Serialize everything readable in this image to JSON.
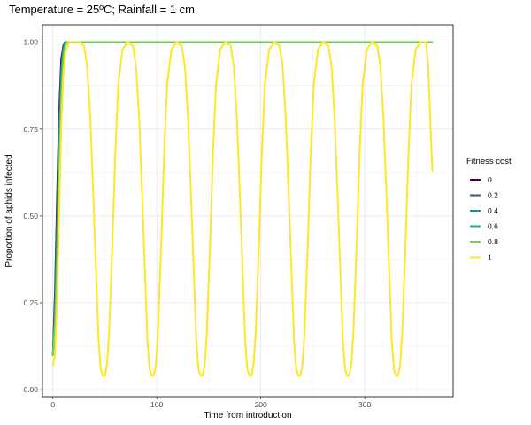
{
  "chart_data": {
    "type": "line",
    "title": "Temperature = 25ºC; Rainfall = 1 cm",
    "xlabel": "Time from introduction",
    "ylabel": "Proportion of aphids infected",
    "xlim": [
      -10,
      385
    ],
    "ylim": [
      -0.02,
      1.05
    ],
    "x_ticks": [
      0,
      100,
      200,
      300
    ],
    "x_tick_labels": [
      "0",
      "100",
      "200",
      "300"
    ],
    "y_ticks": [
      0,
      0.25,
      0.5,
      0.75,
      1
    ],
    "y_tick_labels": [
      "0.00",
      "0.25",
      "0.50",
      "0.75",
      "1.00"
    ],
    "grid": true,
    "legend": {
      "title": "Fitness cost",
      "position": "right"
    },
    "series": [
      {
        "name": "0",
        "color": "#440154",
        "x": [
          0,
          2,
          4,
          6,
          8,
          10,
          12,
          20,
          50,
          100,
          150,
          200,
          250,
          300,
          365
        ],
        "y": [
          0.1,
          0.28,
          0.55,
          0.8,
          0.95,
          0.99,
          1.0,
          1.0,
          1.0,
          1.0,
          1.0,
          1.0,
          1.0,
          1.0,
          1.0
        ]
      },
      {
        "name": "0.2",
        "color": "#3b528b",
        "x": [
          0,
          2,
          4,
          6,
          8,
          10,
          12,
          20,
          50,
          100,
          150,
          200,
          250,
          300,
          365
        ],
        "y": [
          0.1,
          0.25,
          0.5,
          0.76,
          0.93,
          0.99,
          1.0,
          1.0,
          1.0,
          1.0,
          1.0,
          1.0,
          1.0,
          1.0,
          1.0
        ]
      },
      {
        "name": "0.4",
        "color": "#21908d",
        "x": [
          0,
          2,
          4,
          6,
          8,
          10,
          12,
          14,
          20,
          50,
          100,
          150,
          200,
          250,
          300,
          365
        ],
        "y": [
          0.1,
          0.22,
          0.45,
          0.7,
          0.9,
          0.98,
          1.0,
          1.0,
          1.0,
          1.0,
          1.0,
          1.0,
          1.0,
          1.0,
          1.0,
          1.0
        ]
      },
      {
        "name": "0.6",
        "color": "#27ad81",
        "x": [
          0,
          2,
          4,
          6,
          8,
          10,
          12,
          14,
          20,
          50,
          100,
          150,
          200,
          250,
          300,
          365
        ],
        "y": [
          0.1,
          0.2,
          0.4,
          0.65,
          0.87,
          0.97,
          0.995,
          1.0,
          1.0,
          1.0,
          1.0,
          1.0,
          1.0,
          1.0,
          1.0,
          1.0
        ]
      },
      {
        "name": "0.8",
        "color": "#7ad151",
        "x": [
          0,
          2,
          4,
          6,
          8,
          10,
          12,
          14,
          16,
          20,
          50,
          100,
          150,
          200,
          250,
          300,
          365
        ],
        "y": [
          0.1,
          0.18,
          0.35,
          0.6,
          0.83,
          0.95,
          0.99,
          1.0,
          1.0,
          1.0,
          1.0,
          1.0,
          1.0,
          1.0,
          1.0,
          1.0,
          1.0
        ]
      },
      {
        "name": "1",
        "color": "#fde725",
        "x": [
          0,
          2,
          4,
          6,
          8,
          10,
          12,
          16,
          20,
          25,
          30,
          33,
          36,
          39,
          42,
          44,
          46,
          48,
          50,
          52,
          54,
          57,
          60,
          63,
          67,
          72,
          77,
          80,
          83,
          86,
          89,
          91,
          93,
          95,
          97,
          99,
          101,
          104,
          107,
          110,
          114,
          119,
          124,
          127,
          130,
          133,
          136,
          138,
          140,
          142,
          144,
          146,
          148,
          151,
          154,
          157,
          161,
          166,
          171,
          174,
          177,
          180,
          183,
          185,
          187,
          189,
          191,
          193,
          195,
          198,
          201,
          204,
          208,
          213,
          218,
          221,
          224,
          227,
          230,
          232,
          234,
          236,
          238,
          240,
          242,
          245,
          248,
          251,
          255,
          260,
          265,
          268,
          271,
          274,
          277,
          279,
          281,
          283,
          285,
          287,
          289,
          292,
          295,
          298,
          302,
          307,
          312,
          315,
          318,
          321,
          324,
          326,
          328,
          330,
          332,
          334,
          336,
          339,
          342,
          345,
          349,
          354,
          359,
          361,
          363,
          365
        ],
        "y": [
          0.07,
          0.1,
          0.25,
          0.5,
          0.75,
          0.9,
          0.97,
          1.0,
          1.0,
          1.0,
          0.99,
          0.93,
          0.78,
          0.55,
          0.3,
          0.14,
          0.06,
          0.04,
          0.04,
          0.07,
          0.16,
          0.4,
          0.68,
          0.88,
          0.98,
          1.0,
          0.99,
          0.93,
          0.78,
          0.55,
          0.3,
          0.14,
          0.06,
          0.04,
          0.04,
          0.07,
          0.16,
          0.4,
          0.68,
          0.88,
          0.98,
          1.0,
          0.99,
          0.93,
          0.78,
          0.55,
          0.3,
          0.14,
          0.06,
          0.04,
          0.04,
          0.07,
          0.16,
          0.4,
          0.68,
          0.88,
          0.98,
          1.0,
          0.99,
          0.93,
          0.78,
          0.55,
          0.3,
          0.14,
          0.06,
          0.04,
          0.04,
          0.07,
          0.16,
          0.4,
          0.68,
          0.88,
          0.98,
          1.0,
          0.99,
          0.93,
          0.78,
          0.55,
          0.3,
          0.14,
          0.06,
          0.04,
          0.04,
          0.07,
          0.16,
          0.4,
          0.68,
          0.88,
          0.98,
          1.0,
          0.99,
          0.93,
          0.78,
          0.55,
          0.3,
          0.14,
          0.06,
          0.04,
          0.04,
          0.07,
          0.16,
          0.4,
          0.68,
          0.88,
          0.98,
          1.0,
          0.99,
          0.93,
          0.78,
          0.55,
          0.3,
          0.14,
          0.06,
          0.04,
          0.04,
          0.07,
          0.16,
          0.4,
          0.68,
          0.88,
          0.98,
          1.0,
          1.0,
          0.93,
          0.78,
          0.63
        ]
      }
    ]
  }
}
